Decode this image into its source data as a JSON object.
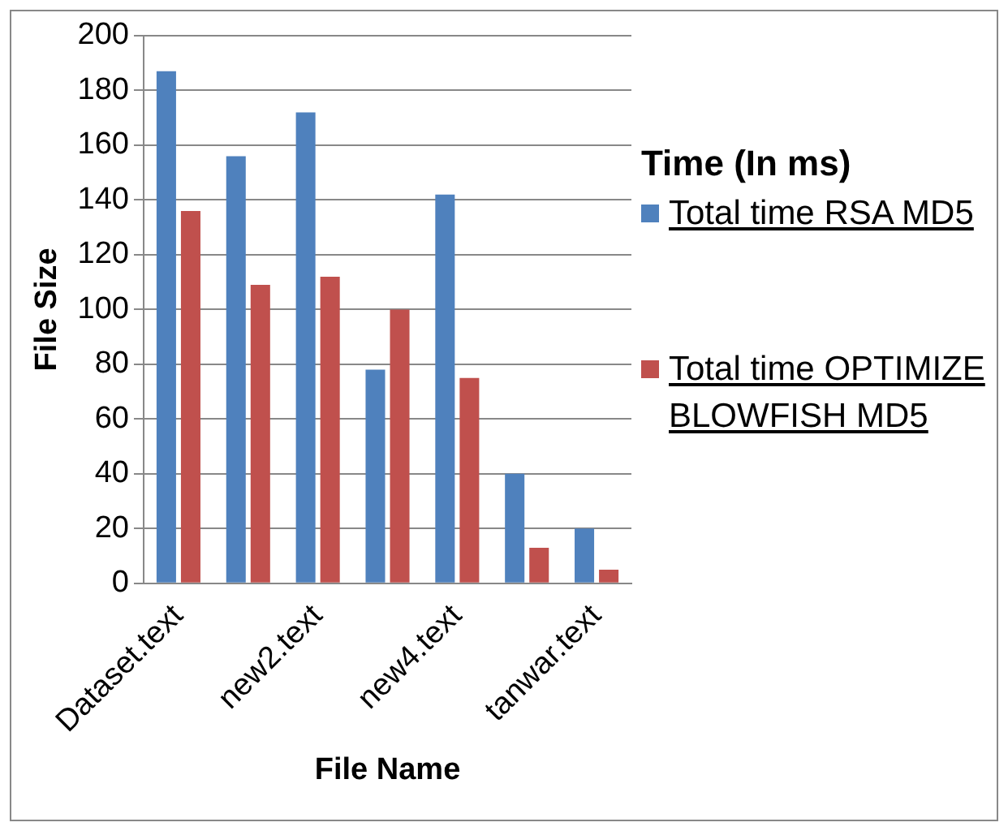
{
  "chart_data": {
    "type": "bar",
    "xlabel": "File Name",
    "ylabel": "File Size",
    "legend_title": "Time (In ms)",
    "categories": [
      "Dataset.text",
      null,
      "new2.text",
      null,
      "new4.text",
      null,
      "tanwar.text"
    ],
    "series": [
      {
        "name": "Total time RSA MD5",
        "color": "#4f81bd",
        "values": [
          187,
          156,
          172,
          78,
          142,
          40,
          20
        ]
      },
      {
        "name": "Total time OPTIMIZE BLOWFISH MD5",
        "color": "#c0504d",
        "values": [
          136,
          109,
          112,
          100,
          75,
          13,
          5
        ]
      }
    ],
    "ylim": [
      0,
      200
    ],
    "yticks": [
      0,
      20,
      40,
      60,
      80,
      100,
      120,
      140,
      160,
      180,
      200
    ],
    "grid": "y",
    "legend": "right"
  }
}
